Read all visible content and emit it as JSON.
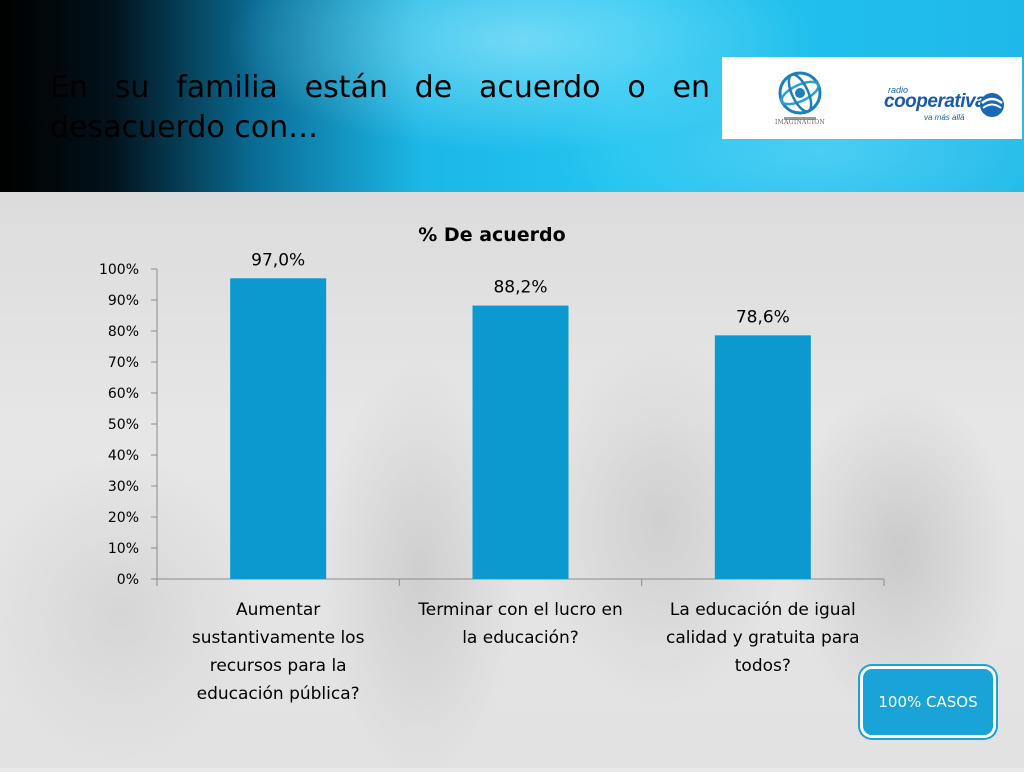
{
  "slide": {
    "title": "En su familia están de acuerdo o en desacuerdo con…",
    "badge": "100% CASOS"
  },
  "logos": {
    "left": {
      "icon": "imaginacion-globe-logo",
      "text": "IMAGINACION"
    },
    "right": {
      "icon": "cooperativa-logo",
      "small": "radio",
      "main": "cooperativa",
      "tagline": "va más allá"
    }
  },
  "colors": {
    "bar": "#0b99d0",
    "header_accent": "#22c4f0",
    "badge": "#1aa3d6"
  },
  "chart_data": {
    "type": "bar",
    "title": "% De acuerdo",
    "categories": [
      [
        "Aumentar",
        "sustantivamente los",
        "recursos para la",
        "educación pública?"
      ],
      [
        "Terminar con el lucro en",
        "la educación?"
      ],
      [
        "La educación de igual",
        "calidad y gratuita para",
        "todos?"
      ]
    ],
    "values": [
      97.0,
      88.2,
      78.6
    ],
    "data_labels": [
      "97,0%",
      "88,2%",
      "78,6%"
    ],
    "ylim": [
      0,
      100
    ],
    "yticks": [
      0,
      10,
      20,
      30,
      40,
      50,
      60,
      70,
      80,
      90,
      100
    ],
    "ytick_labels": [
      "0%",
      "10%",
      "20%",
      "30%",
      "40%",
      "50%",
      "60%",
      "70%",
      "80%",
      "90%",
      "100%"
    ],
    "grid": false,
    "legend": "none"
  }
}
